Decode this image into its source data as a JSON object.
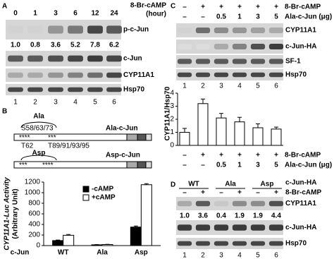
{
  "panel_a": {
    "label": "A",
    "treatment": "8-Br-cAMP",
    "unit": "(hour)",
    "times": [
      "0",
      "1",
      "3",
      "6",
      "12",
      "24"
    ],
    "blots": [
      "p-c-Jun",
      "c-Jun",
      "CYP11A1",
      "Hsp70"
    ],
    "quant": [
      "1.0",
      "0.8",
      "3.6",
      "5.2",
      "7.8",
      "6.2"
    ],
    "lanes": [
      "1",
      "2",
      "3",
      "4",
      "5",
      "6"
    ]
  },
  "panel_b": {
    "label": "B",
    "ala": {
      "name": "Ala",
      "sites_top": "S58/63/73",
      "stars": [
        "****",
        "***"
      ],
      "site_left": "T62",
      "site_right": "T89/91/93/95",
      "construct": "Ala-c-Jun"
    },
    "asp": {
      "name": "Asp",
      "stars": [
        "***",
        "****"
      ],
      "construct": "Asp-c-Jun"
    }
  },
  "panel_c": {
    "label": "C",
    "rows": [
      {
        "name": "8-Br-cAMP",
        "labels": [
          "–",
          "+",
          "+",
          "+",
          "+",
          "+"
        ]
      },
      {
        "name": "Ala-c-Jun (μg)",
        "labels": [
          "–",
          "–",
          "0.5",
          "1",
          "3",
          "5"
        ]
      }
    ],
    "blots": [
      "CYP11A1",
      "c-Jun-HA",
      "SF-1",
      "Hsp70"
    ]
  },
  "panel_d": {
    "label": "D",
    "groups": [
      "WT",
      "Ala",
      "Asp"
    ],
    "group_row": "c-Jun-HA",
    "treatment": "8-Br-cAMP",
    "signs": [
      "–",
      "+",
      "–",
      "+",
      "–",
      "+"
    ],
    "blots": [
      "CYP11A1",
      "c-Jun-HA",
      "Hsp70"
    ],
    "quant": [
      "1.0",
      "3.6",
      "0.4",
      "1.9",
      "1.9",
      "4.4"
    ],
    "lanes": [
      "1",
      "2",
      "3",
      "4",
      "5",
      "6"
    ]
  },
  "chart_data": [
    {
      "type": "bar",
      "y_label": "CYP11A1-Luc Activity",
      "y_label_2": "(Arbitrary Unit)",
      "x_label": "c-Jun",
      "categories": [
        "WT",
        "Ala",
        "Asp"
      ],
      "series": [
        {
          "name": "-cAMP",
          "color": "#000000",
          "values": [
            95,
            15,
            350
          ],
          "errors": [
            10,
            4,
            20
          ]
        },
        {
          "name": "+cAMP",
          "color": "#ffffff",
          "values": [
            195,
            20,
            1150
          ],
          "errors": [
            15,
            4,
            20
          ]
        }
      ],
      "ylim": [
        0,
        1200
      ],
      "yticks": [
        0,
        200,
        400,
        600,
        800,
        1000,
        1200
      ],
      "legend": "upper left"
    },
    {
      "type": "bar",
      "y_label": "CYP11A1/Hsp70",
      "categories": [
        "1",
        "2",
        "3",
        "4",
        "5",
        "6"
      ],
      "values": [
        1.0,
        3.2,
        2.1,
        1.8,
        1.35,
        1.25
      ],
      "errors": [
        0.3,
        0.35,
        0.35,
        0.35,
        0.3,
        0.15
      ],
      "color": "#ffffff",
      "ylim": [
        0,
        4
      ],
      "yticks": [
        0,
        1,
        2,
        3,
        4
      ],
      "conditions": [
        {
          "name": "8-Br-cAMP",
          "labels": [
            "–",
            "+",
            "+",
            "+",
            "+",
            "+"
          ]
        },
        {
          "name": "Ala-c-Jun (μg)",
          "labels": [
            "–",
            "–",
            "0.5",
            "1",
            "3",
            "5"
          ]
        }
      ]
    }
  ]
}
